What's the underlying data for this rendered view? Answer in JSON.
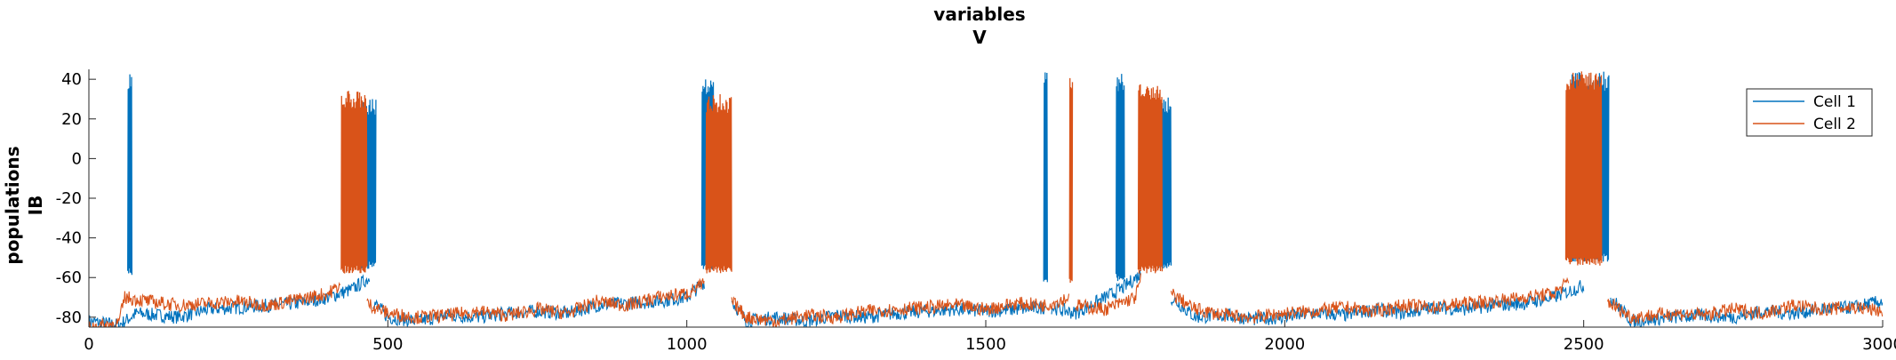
{
  "chart_data": {
    "type": "line",
    "title": [
      "variables",
      "V"
    ],
    "ylabel": [
      "populations",
      "IB"
    ],
    "xlabel": "",
    "xlim": [
      0,
      3000
    ],
    "ylim": [
      -85,
      45
    ],
    "x_ticks": [
      0,
      500,
      1000,
      1500,
      2000,
      2500,
      3000
    ],
    "y_ticks": [
      40,
      20,
      0,
      -20,
      -40,
      -60,
      -80
    ],
    "grid": false,
    "legend": {
      "placement": "top-right",
      "entries": [
        "Cell 1",
        "Cell 2"
      ]
    },
    "series": [
      {
        "name": "Cell 1",
        "color": "#0072BD",
        "baseline_segments": [
          {
            "x": [
              0,
              50,
              80,
              150,
              200,
              250,
              300,
              350,
              400,
              440,
              470
            ],
            "y": [
              -82,
              -84,
              -78,
              -80,
              -76,
              -75,
              -74,
              -73,
              -70,
              -66,
              -60
            ]
          },
          {
            "x": [
              475,
              500,
              550,
              600,
              650,
              700,
              750,
              800,
              850,
              900,
              950,
              1000,
              1030
            ],
            "y": [
              -72,
              -80,
              -82,
              -79,
              -80,
              -78,
              -77,
              -78,
              -74,
              -73,
              -72,
              -70,
              -62
            ]
          },
          {
            "x": [
              1075,
              1100,
              1150,
              1200,
              1250,
              1300,
              1350,
              1400,
              1450,
              1500,
              1550,
              1600
            ],
            "y": [
              -72,
              -82,
              -80,
              -82,
              -79,
              -80,
              -78,
              -77,
              -76,
              -77,
              -76,
              -75
            ]
          },
          {
            "x": [
              1610,
              1650,
              1700,
              1730,
              1760
            ],
            "y": [
              -75,
              -78,
              -70,
              -65,
              -58
            ]
          },
          {
            "x": [
              1810,
              1850,
              1900,
              1950,
              2000,
              2050,
              2100,
              2150,
              2200,
              2250,
              2300,
              2350,
              2400,
              2450,
              2500
            ],
            "y": [
              -70,
              -80,
              -79,
              -81,
              -80,
              -78,
              -79,
              -76,
              -78,
              -75,
              -76,
              -74,
              -73,
              -70,
              -64
            ]
          },
          {
            "x": [
              2545,
              2580,
              2650,
              2700,
              2750,
              2800,
              2850,
              2900,
              2950,
              3000
            ],
            "y": [
              -70,
              -82,
              -80,
              -79,
              -80,
              -77,
              -78,
              -76,
              -75,
              -72
            ]
          }
        ],
        "bursts": [
          {
            "x_start": 65,
            "x_end": 72,
            "top": 44,
            "bottom": -55
          },
          {
            "x_start": 455,
            "x_end": 480,
            "top": 30,
            "bottom": -52
          },
          {
            "x_start": 1025,
            "x_end": 1045,
            "top": 40,
            "bottom": -52
          },
          {
            "x_start": 1597,
            "x_end": 1603,
            "top": 44,
            "bottom": -60
          },
          {
            "x_start": 1718,
            "x_end": 1732,
            "top": 44,
            "bottom": -58
          },
          {
            "x_start": 1790,
            "x_end": 1810,
            "top": 33,
            "bottom": -52
          },
          {
            "x_start": 2480,
            "x_end": 2542,
            "top": 44,
            "bottom": -48
          }
        ]
      },
      {
        "name": "Cell 2",
        "color": "#D95319",
        "baseline_segments": [
          {
            "x": [
              0,
              50,
              60,
              100,
              150,
              200,
              250,
              300,
              350,
              400,
              420
            ],
            "y": [
              -85,
              -83,
              -70,
              -72,
              -74,
              -73,
              -72,
              -74,
              -71,
              -68,
              -64
            ]
          },
          {
            "x": [
              465,
              500,
              550,
              600,
              650,
              700,
              750,
              800,
              850,
              900,
              950,
              1000,
              1030
            ],
            "y": [
              -73,
              -78,
              -80,
              -79,
              -77,
              -79,
              -76,
              -78,
              -72,
              -74,
              -70,
              -68,
              -63
            ]
          },
          {
            "x": [
              1075,
              1100,
              1150,
              1200,
              1250,
              1300,
              1350,
              1400,
              1450,
              1500,
              1550,
              1600,
              1640
            ],
            "y": [
              -72,
              -80,
              -82,
              -79,
              -80,
              -77,
              -76,
              -75,
              -74,
              -76,
              -73,
              -74,
              -70
            ]
          },
          {
            "x": [
              1650,
              1700,
              1750,
              1760
            ],
            "y": [
              -74,
              -76,
              -70,
              -60
            ]
          },
          {
            "x": [
              1810,
              1850,
              1900,
              1950,
              2000,
              2050,
              2100,
              2150,
              2200,
              2250,
              2300,
              2350,
              2400,
              2450,
              2475
            ],
            "y": [
              -68,
              -76,
              -79,
              -80,
              -78,
              -77,
              -75,
              -77,
              -74,
              -75,
              -73,
              -72,
              -70,
              -68,
              -62
            ]
          },
          {
            "x": [
              2540,
              2580,
              2650,
              2700,
              2750,
              2800,
              2850,
              2900,
              2950,
              3000
            ],
            "y": [
              -72,
              -80,
              -78,
              -79,
              -76,
              -78,
              -74,
              -76,
              -75,
              -77
            ]
          }
        ],
        "bursts": [
          {
            "x_start": 422,
            "x_end": 465,
            "top": 35,
            "bottom": -54
          },
          {
            "x_start": 1032,
            "x_end": 1075,
            "top": 33,
            "bottom": -54
          },
          {
            "x_start": 1640,
            "x_end": 1645,
            "top": 42,
            "bottom": -60
          },
          {
            "x_start": 1755,
            "x_end": 1795,
            "top": 38,
            "bottom": -54
          },
          {
            "x_start": 2470,
            "x_end": 2530,
            "top": 44,
            "bottom": -50
          }
        ]
      }
    ]
  }
}
